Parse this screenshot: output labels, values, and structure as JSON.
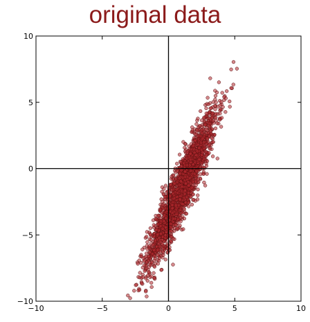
{
  "chart_data": {
    "type": "scatter",
    "title": "original data",
    "xlabel": "",
    "ylabel": "",
    "xlim": [
      -10,
      10
    ],
    "ylim": [
      -10,
      10
    ],
    "x_ticks": [
      "−10",
      "−5",
      "0",
      "5",
      "10"
    ],
    "y_ticks": [
      "10",
      "5",
      "0",
      "−5",
      "−10"
    ],
    "x_tick_values": [
      -10,
      -5,
      0,
      5,
      10
    ],
    "y_tick_values": [
      10,
      5,
      0,
      -5,
      -10
    ],
    "grid": false,
    "zero_lines": true,
    "series": [
      {
        "points": "bivariate normal cloud, ~2000 points",
        "mean": [
          1.0,
          -1.5
        ],
        "std": [
          1.3,
          2.9
        ],
        "correlation": 0.92,
        "count": 2000
      }
    ],
    "colors": {
      "marker_fill": "#b0282e",
      "marker_edge": "#5a1010",
      "title": "#8b1a1a",
      "axis": "#000000"
    }
  }
}
